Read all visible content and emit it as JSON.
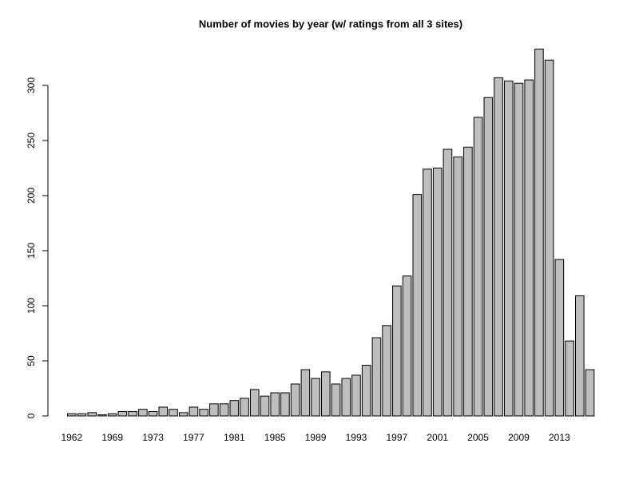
{
  "chart_data": {
    "type": "bar",
    "title": "Number of movies by year (w/ ratings from all 3 sites)",
    "categories": [
      "1962",
      null,
      null,
      null,
      "1969",
      null,
      null,
      null,
      "1973",
      null,
      null,
      null,
      "1977",
      null,
      null,
      null,
      "1981",
      null,
      null,
      null,
      "1985",
      null,
      null,
      null,
      "1989",
      null,
      null,
      null,
      "1993",
      null,
      null,
      null,
      "1997",
      null,
      null,
      null,
      "2001",
      null,
      null,
      null,
      "2005",
      null,
      null,
      null,
      "2009",
      null,
      null,
      null,
      "2013",
      null,
      null,
      null
    ],
    "values": [
      2,
      2,
      3,
      1,
      2,
      4,
      4,
      6,
      4,
      8,
      6,
      3,
      8,
      6,
      11,
      11,
      14,
      16,
      24,
      18,
      21,
      21,
      29,
      42,
      34,
      40,
      29,
      34,
      37,
      46,
      71,
      82,
      118,
      127,
      201,
      224,
      225,
      242,
      235,
      244,
      271,
      289,
      307,
      304,
      302,
      305,
      333,
      323,
      142,
      68,
      109,
      42
    ],
    "color": "#bebebe",
    "ylim": [
      0,
      335
    ],
    "yticks": [
      0,
      50,
      100,
      150,
      200,
      250,
      300
    ]
  }
}
